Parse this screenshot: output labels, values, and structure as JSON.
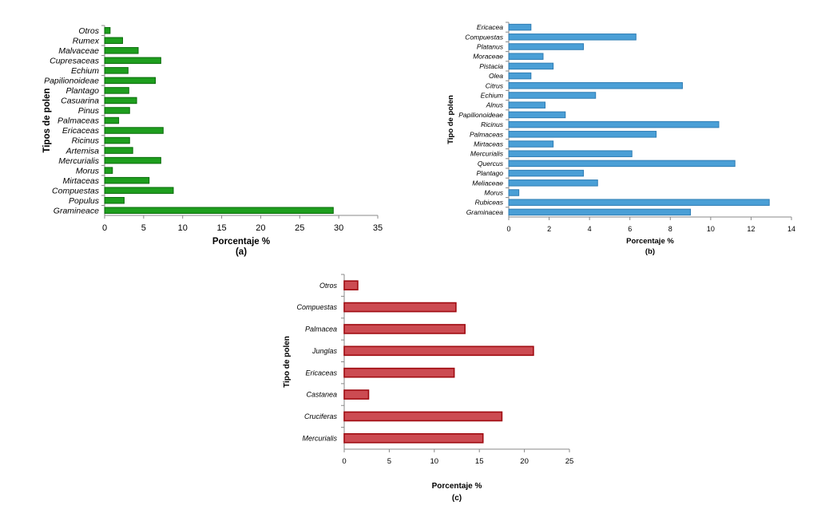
{
  "chart_data": [
    {
      "type": "bar",
      "orientation": "horizontal",
      "categories": [
        "Otros",
        "Rumex",
        "Malvaceae",
        "Cupresaceas",
        "Echium",
        "Papilionoideae",
        "Plantago",
        "Casuarina",
        "Pinus",
        "Palmaceas",
        "Ericaceas",
        "Ricinus",
        "Artemisa",
        "Mercurialis",
        "Morus",
        "Mirtaceas",
        "Compuestas",
        "Populus",
        "Gramineace"
      ],
      "values": [
        0.7,
        2.3,
        4.3,
        7.2,
        3.0,
        6.5,
        3.1,
        4.1,
        3.2,
        1.8,
        7.5,
        3.2,
        3.6,
        7.2,
        1.0,
        5.7,
        8.8,
        2.5,
        29.3
      ],
      "xlabel": "Porcentaje  %",
      "ylabel": "Tipos de polen",
      "xlim": [
        0,
        35
      ],
      "xticks": [
        "0",
        "5",
        "10",
        "15",
        "20",
        "25",
        "30",
        "35"
      ],
      "caption": "(a)",
      "color": "#1e9e1e",
      "edge": "#0a6b0a"
    },
    {
      "type": "bar",
      "orientation": "horizontal",
      "categories": [
        "Ericacea",
        "Compuestas",
        "Platanus",
        "Moraceae",
        "Pistacia",
        "Olea",
        "Citrus",
        "Echium",
        "Alnus",
        "Papilionoideae",
        "Ricinus",
        "Palmaceas",
        "Mirtaceas",
        "Mercurialis",
        "Quercus",
        "Plantago",
        "Meliaceae",
        "Morus",
        "Rubiceas",
        "Graminacea"
      ],
      "values": [
        1.1,
        6.3,
        3.7,
        1.7,
        2.2,
        1.1,
        8.6,
        4.3,
        1.8,
        2.8,
        10.4,
        7.3,
        2.2,
        6.1,
        11.2,
        3.7,
        4.4,
        0.5,
        12.9,
        9.0
      ],
      "xlabel": "Porcentaje %",
      "ylabel": "Tipo de polen",
      "xlim": [
        0,
        14
      ],
      "xticks": [
        "0",
        "2",
        "4",
        "6",
        "8",
        "10",
        "12",
        "14"
      ],
      "caption": "(b)",
      "color": "#4a9fd6",
      "edge": "#2f7db4"
    },
    {
      "type": "bar",
      "orientation": "horizontal",
      "categories": [
        "Otros",
        "Compuestas",
        "Palmacea",
        "Junglas",
        "Ericaceas",
        "Castanea",
        "Cruciferas",
        "Mercurialis"
      ],
      "values": [
        1.5,
        12.4,
        13.4,
        21.0,
        12.2,
        2.7,
        17.5,
        15.4
      ],
      "xlabel": "Porcentaje %",
      "ylabel": "Tipo de polen",
      "xlim": [
        0,
        25
      ],
      "xticks": [
        "0",
        "5",
        "10",
        "15",
        "20",
        "25"
      ],
      "caption": "(c)",
      "color": "#cc4b52",
      "edge": "#a00c12"
    }
  ]
}
